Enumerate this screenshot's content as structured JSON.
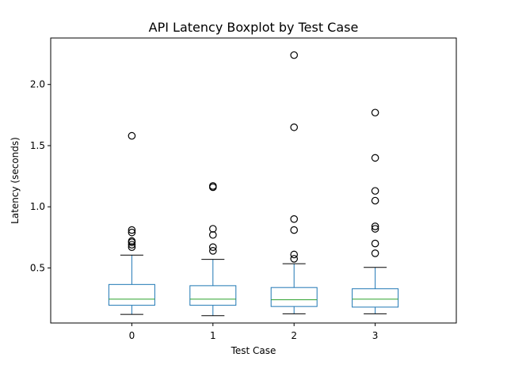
{
  "chart_data": {
    "type": "boxplot",
    "title": "API Latency Boxplot by Test Case",
    "xlabel": "Test Case",
    "ylabel": "Latency (seconds)",
    "categories": [
      "0",
      "1",
      "2",
      "3"
    ],
    "ylim": [
      0.05,
      2.38
    ],
    "yticks": [
      0.5,
      1.0,
      1.5,
      2.0
    ],
    "ytick_labels": [
      "0.5",
      "1.0",
      "1.5",
      "2.0"
    ],
    "grid": false,
    "colors": {
      "box": "#1f77b4",
      "median": "#2ca02c",
      "whisker": "#1f77b4",
      "cap": "#000000",
      "outlier": "#000000"
    },
    "boxes": [
      {
        "category": "0",
        "whisker_low": 0.12,
        "q1": 0.195,
        "median": 0.245,
        "q3": 0.365,
        "whisker_high": 0.605,
        "outliers": [
          0.67,
          0.69,
          0.71,
          0.72,
          0.79,
          0.81,
          1.58
        ]
      },
      {
        "category": "1",
        "whisker_low": 0.11,
        "q1": 0.195,
        "median": 0.245,
        "q3": 0.355,
        "whisker_high": 0.57,
        "outliers": [
          0.64,
          0.67,
          0.77,
          0.82,
          1.16,
          1.17
        ]
      },
      {
        "category": "2",
        "whisker_low": 0.125,
        "q1": 0.185,
        "median": 0.24,
        "q3": 0.34,
        "whisker_high": 0.535,
        "outliers": [
          0.575,
          0.61,
          0.81,
          0.9,
          1.65,
          2.24
        ]
      },
      {
        "category": "3",
        "whisker_low": 0.125,
        "q1": 0.18,
        "median": 0.245,
        "q3": 0.33,
        "whisker_high": 0.505,
        "outliers": [
          0.62,
          0.7,
          0.82,
          0.84,
          1.05,
          1.13,
          1.4,
          1.77
        ]
      }
    ]
  }
}
